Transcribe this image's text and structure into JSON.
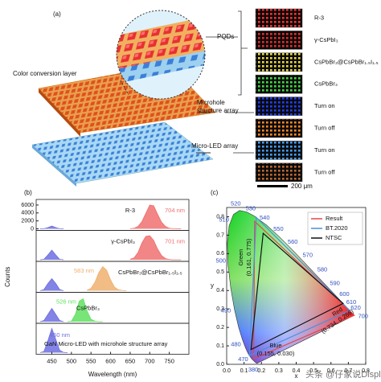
{
  "panel_a": {
    "label": "(a)",
    "pqds": "PQDs",
    "color_layer": "Color conversion layer",
    "microhole": [
      "Microhole",
      "structure array"
    ],
    "micro_led": "Micro-LED array",
    "scale_bar": "200 μm",
    "tiles": [
      {
        "label": "R-3",
        "color": "#ff3030"
      },
      {
        "label": "γ-CsPbI₃",
        "color": "#e82a2a"
      },
      {
        "label": "CsPbBr₃@CsPbBr₁.₅I₁.₅",
        "color": "#f0e040"
      },
      {
        "label": "CsPbBr₃",
        "color": "#40e040"
      },
      {
        "label": "Turn on",
        "color": "#2040ff"
      },
      {
        "label": "Turn off",
        "color": "#ff8a20"
      },
      {
        "label": "Turn on",
        "color": "#40a0ff"
      },
      {
        "label": "Turn off",
        "color": "#c06a30"
      }
    ]
  },
  "watermark": "头条 @仔家说Display",
  "chart_data": [
    {
      "type": "spectra",
      "label": "(b)",
      "x_label": "Wavelength (nm)",
      "y_label": "Counts",
      "x": [
        420,
        430,
        440,
        450,
        460,
        470,
        480,
        490,
        500,
        510,
        520,
        530,
        540,
        550,
        560,
        570,
        580,
        590,
        600,
        610,
        620,
        630,
        640,
        650,
        660,
        670,
        680,
        690,
        700,
        710,
        720,
        730,
        740,
        750,
        760,
        770,
        780
      ],
      "xlim": [
        410,
        800
      ],
      "xticks": [
        450,
        500,
        550,
        600,
        650,
        700,
        750
      ],
      "panels": [
        {
          "name": "R-3",
          "peak_label": "704 nm",
          "ylim": [
            0,
            7000
          ],
          "yticks": [
            0,
            2000,
            4000,
            6000
          ],
          "series": [
            {
              "color": "#6d6ee0",
              "values": [
                0,
                20,
                300,
                700,
                300,
                20,
                0,
                null,
                null,
                null,
                null,
                null,
                null,
                null,
                null,
                null,
                null,
                null,
                null,
                null,
                null,
                null,
                null,
                null,
                null,
                null,
                null,
                null,
                null,
                null,
                null,
                null,
                null,
                null,
                null,
                null,
                null
              ]
            },
            {
              "color": "#f07070",
              "values": [
                null,
                null,
                null,
                null,
                null,
                null,
                null,
                null,
                null,
                null,
                null,
                null,
                null,
                null,
                null,
                null,
                null,
                null,
                null,
                null,
                null,
                null,
                null,
                30,
                150,
                600,
                1800,
                3900,
                6000,
                5800,
                3700,
                1700,
                600,
                150,
                30,
                0,
                0
              ]
            }
          ]
        },
        {
          "name": "γ-CsPbI₃",
          "peak_label": "701 nm",
          "ylim": [
            0,
            1.15
          ],
          "series": [
            {
              "color": "#6d6ee0",
              "values": [
                0,
                0.02,
                0.2,
                0.4,
                0.2,
                0.02,
                0,
                null,
                null,
                null,
                null,
                null,
                null,
                null,
                null,
                null,
                null,
                null,
                null,
                null,
                null,
                null,
                null,
                null,
                null,
                null,
                null,
                null,
                null,
                null,
                null,
                null,
                null,
                null,
                null,
                null,
                null
              ]
            },
            {
              "color": "#f07070",
              "values": [
                null,
                null,
                null,
                null,
                null,
                null,
                null,
                null,
                null,
                null,
                null,
                null,
                null,
                null,
                null,
                null,
                null,
                null,
                null,
                null,
                null,
                null,
                null,
                0.02,
                0.08,
                0.3,
                0.7,
                0.97,
                1.0,
                0.8,
                0.45,
                0.18,
                0.05,
                0.01,
                0,
                0,
                0
              ]
            }
          ]
        },
        {
          "name": "CsPbBr₃@CsPbBr₁.₅I₁.₅",
          "peak_label": "583 nm",
          "ylim": [
            0,
            1.15
          ],
          "series": [
            {
              "color": "#6d6ee0",
              "values": [
                0,
                0.05,
                0.3,
                0.5,
                0.3,
                0.05,
                0,
                null,
                null,
                null,
                null,
                null,
                null,
                null,
                null,
                null,
                null,
                null,
                null,
                null,
                null,
                null,
                null,
                null,
                null,
                null,
                null,
                null,
                null,
                null,
                null,
                null,
                null,
                null,
                null,
                null,
                null
              ]
            },
            {
              "color": "#f0b070",
              "values": [
                null,
                null,
                null,
                null,
                null,
                null,
                null,
                null,
                null,
                null,
                null,
                null,
                0.02,
                0.1,
                0.35,
                0.75,
                1.0,
                0.85,
                0.45,
                0.15,
                0.04,
                0.01,
                0,
                null,
                null,
                null,
                null,
                null,
                null,
                null,
                null,
                null,
                null,
                null,
                null,
                null,
                null
              ]
            }
          ]
        },
        {
          "name": "CsPbBr₃",
          "peak_label": "526 nm",
          "ylim": [
            0,
            1.15
          ],
          "series": [
            {
              "color": "#6d6ee0",
              "values": [
                0,
                0.05,
                0.3,
                0.55,
                0.3,
                0.05,
                0,
                null,
                null,
                null,
                null,
                null,
                null,
                null,
                null,
                null,
                null,
                null,
                null,
                null,
                null,
                null,
                null,
                null,
                null,
                null,
                null,
                null,
                null,
                null,
                null,
                null,
                null,
                null,
                null,
                null,
                null
              ]
            },
            {
              "color": "#60e060",
              "values": [
                null,
                null,
                null,
                null,
                null,
                null,
                null,
                0,
                0.02,
                0.3,
                0.85,
                0.95,
                0.45,
                0.1,
                0.02,
                0,
                0,
                null,
                null,
                null,
                null,
                null,
                null,
                null,
                null,
                null,
                null,
                null,
                null,
                null,
                null,
                null,
                null,
                null,
                null,
                null,
                null
              ]
            }
          ]
        },
        {
          "name": "GaN Micro-LED with microhole structure array",
          "peak_label": "450 nm",
          "ylim": [
            0,
            1.15
          ],
          "series": [
            {
              "color": "#6d6ee0",
              "values": [
                0,
                0.05,
                0.5,
                1.0,
                0.55,
                0.1,
                0.01,
                0,
                null,
                null,
                null,
                null,
                null,
                null,
                null,
                null,
                null,
                null,
                null,
                null,
                null,
                null,
                null,
                null,
                null,
                null,
                null,
                null,
                null,
                null,
                null,
                null,
                null,
                null,
                null,
                null,
                null
              ]
            }
          ]
        }
      ]
    },
    {
      "type": "cie",
      "label": "(c)",
      "x_label": "x",
      "y_label": "y",
      "xlim": [
        0,
        0.8
      ],
      "ylim": [
        0,
        0.85
      ],
      "xticks": [
        {
          "value": 0,
          "label": "0.0"
        },
        0.1,
        0.2,
        0.3,
        0.4,
        0.5,
        0.6,
        0.7,
        0.8
      ],
      "yticks": [
        {
          "value": 0,
          "label": "0.0"
        },
        0.1,
        0.2,
        0.3,
        0.4,
        0.5,
        0.6,
        0.7,
        0.8
      ],
      "locus": {
        "wavelengths": [
          380,
          null,
          null,
          470,
          null,
          480,
          null,
          490,
          null,
          500,
          null,
          510,
          null,
          520,
          null,
          530,
          540,
          550,
          560,
          570,
          580,
          590,
          600,
          610,
          620,
          null,
          700
        ],
        "x": [
          0.1741,
          0.1644,
          0.144,
          0.1241,
          0.1096,
          0.0913,
          0.0687,
          0.0454,
          0.0235,
          0.0082,
          0.0039,
          0.0139,
          0.0389,
          0.0743,
          0.1142,
          0.1547,
          0.2296,
          0.3016,
          0.3731,
          0.4441,
          0.5125,
          0.5752,
          0.627,
          0.6658,
          0.6915,
          0.719,
          0.7347
        ],
        "y": [
          0.005,
          0.0109,
          0.0297,
          0.0578,
          0.0868,
          0.1327,
          0.2007,
          0.295,
          0.4127,
          0.5384,
          0.6548,
          0.7502,
          0.812,
          0.8338,
          0.8262,
          0.8059,
          0.7543,
          0.6923,
          0.6245,
          0.5547,
          0.4866,
          0.4242,
          0.3725,
          0.334,
          0.3083,
          0.2809,
          0.2653
        ]
      },
      "series": [
        {
          "name": "Result",
          "color": "#e04848",
          "x": [
            0.734,
            0.161,
            0.155
          ],
          "y": [
            0.266,
            0.775,
            0.03
          ]
        },
        {
          "name": "BT.2020",
          "color": "#4a90e0",
          "x": [
            0.708,
            0.17,
            0.131
          ],
          "y": [
            0.292,
            0.797,
            0.046
          ]
        },
        {
          "name": "NTSC",
          "color": "#111111",
          "x": [
            0.67,
            0.21,
            0.14
          ],
          "y": [
            0.33,
            0.71,
            0.08
          ]
        }
      ],
      "legend": "upper right",
      "annotations": [
        "Green",
        "(0.161, 0.775)",
        "Blue",
        "(0.155, 0.030)",
        "Red",
        "(0.734, 0.266)"
      ]
    }
  ]
}
